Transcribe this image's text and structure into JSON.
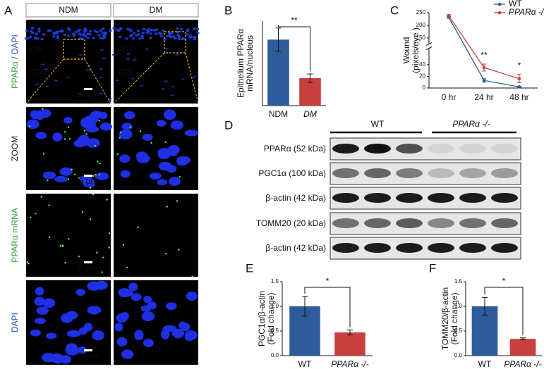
{
  "micrograph": {
    "panel": "A",
    "columns": [
      "NDM",
      "DM"
    ],
    "rows": [
      [
        "PPARα",
        " / DAPI"
      ],
      [
        "ZOOM"
      ],
      [
        "PPARα mRNA"
      ],
      [
        "DAPI"
      ]
    ],
    "regions": [
      "EPI",
      "STR"
    ],
    "scale_bars": [
      "20 µm",
      "5 µm",
      "5 µm",
      "5 µm"
    ]
  },
  "blot": {
    "panel": "D",
    "groups": [
      "WT",
      "PPARα -/-"
    ],
    "rows": [
      "PPARα (52 kDa)",
      "PGC1α (100 kDa)",
      "β-actin (42 kDa)",
      "TOMM20 (20 kDa)",
      "β-actin (42 kDa)"
    ]
  },
  "chart_data": [
    {
      "type": "bar",
      "panel": "B",
      "ylabel": [
        "Epithelium PPARα",
        "mRNA/nucleus"
      ],
      "categories": [
        "NDM",
        "DM"
      ],
      "values": [
        1.25,
        0.52
      ],
      "errors": [
        0.22,
        0.08
      ],
      "colors": [
        "#2e5c9a",
        "#c8403e"
      ],
      "ylim": [
        0,
        1.6
      ],
      "significance": "**"
    },
    {
      "type": "line",
      "panel": "C",
      "ylabel": [
        "Wound",
        "(pixels/eye )"
      ],
      "categories": [
        "0 hr",
        "24 hr",
        "48 hr"
      ],
      "series": [
        {
          "name": "WT",
          "color": "#2e5c9a",
          "values": [
            232,
            13,
            2
          ],
          "errors": [
            4,
            3,
            1
          ]
        },
        {
          "name": "PPARα -/-",
          "color": "#c8403e",
          "values": [
            238,
            35,
            16
          ],
          "errors": [
            4,
            6,
            7
          ]
        }
      ],
      "ylim": [
        0,
        250
      ],
      "ybreak": [
        50,
        140
      ],
      "yticks": [
        0,
        20,
        40,
        150,
        200,
        250
      ],
      "legend": "upper right",
      "annotations": [
        null,
        "**",
        "*"
      ]
    },
    {
      "type": "bar",
      "panel": "E",
      "ylabel": [
        "PGC1α/β-actin",
        "(Fold change)"
      ],
      "categories": [
        "WT",
        "PPARα -/-"
      ],
      "values": [
        1.0,
        0.47
      ],
      "errors": [
        0.2,
        0.05
      ],
      "colors": [
        "#2e5c9a",
        "#c8403e"
      ],
      "ylim": [
        0,
        1.5
      ],
      "yticks": [
        {
          "value": 0,
          "label": "0.0"
        },
        {
          "value": 0.5,
          "label": "0.5"
        },
        {
          "value": 1,
          "label": "1.0"
        },
        {
          "value": 1.5,
          "label": "1.5"
        }
      ],
      "significance": "*"
    },
    {
      "type": "bar",
      "panel": "F",
      "ylabel": [
        "TOMM20/β-actin",
        "(Fold change)"
      ],
      "categories": [
        "WT",
        "PPARα -/-"
      ],
      "values": [
        1.0,
        0.34
      ],
      "errors": [
        0.18,
        0.02
      ],
      "colors": [
        "#2e5c9a",
        "#c8403e"
      ],
      "ylim": [
        0,
        1.5
      ],
      "yticks": [
        {
          "value": 0,
          "label": "0.0"
        },
        {
          "value": 0.5,
          "label": "0.5"
        },
        {
          "value": 1,
          "label": "1.0"
        },
        {
          "value": 1.5,
          "label": "1.5"
        }
      ],
      "significance": "*"
    }
  ]
}
